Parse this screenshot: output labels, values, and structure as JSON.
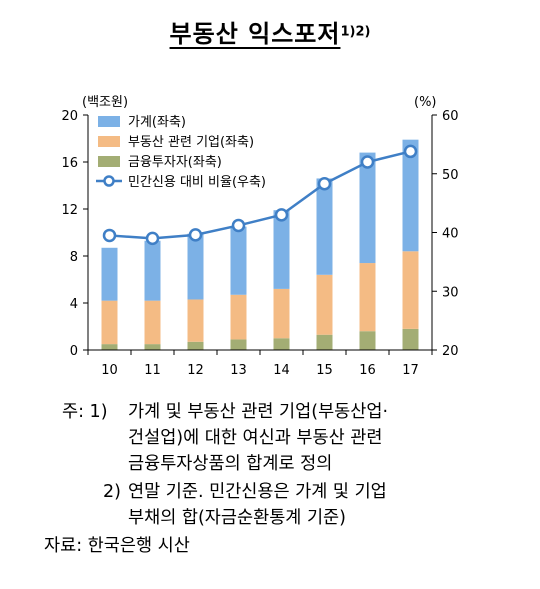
{
  "title": "부동산 익스포저",
  "title_footnote_marks": "1)2)",
  "chart_data": {
    "type": "bar+line",
    "stacked": true,
    "categories": [
      "10",
      "11",
      "12",
      "13",
      "14",
      "15",
      "16",
      "17"
    ],
    "y_left_label": "(백조원)",
    "y_right_label": "(%)",
    "y_left_range": [
      0,
      20
    ],
    "y_left_ticks": [
      "0",
      "4",
      "8",
      "12",
      "16",
      "20"
    ],
    "y_right_range": [
      20,
      60
    ],
    "y_right_ticks": [
      "20",
      "30",
      "40",
      "50",
      "60"
    ],
    "legend_position": "top-left",
    "series": [
      {
        "name": "금융투자자(좌축)",
        "kind": "bar",
        "color": "#a3ad74",
        "values": [
          0.5,
          0.5,
          0.7,
          0.9,
          1.0,
          1.3,
          1.6,
          1.8
        ]
      },
      {
        "name": "부동산 관련 기업(좌축)",
        "kind": "bar",
        "color": "#f4bb84",
        "values": [
          3.7,
          3.7,
          3.6,
          3.8,
          4.2,
          5.1,
          5.8,
          6.6
        ]
      },
      {
        "name": "가계(좌축)",
        "kind": "bar",
        "color": "#7cb1e6",
        "values": [
          4.5,
          5.1,
          5.6,
          5.8,
          6.7,
          8.2,
          9.4,
          9.5
        ]
      },
      {
        "name": "민간신용 대비 비율(우축)",
        "kind": "line",
        "axis": "right",
        "color": "#3f7fc6",
        "values": [
          39.5,
          39.0,
          39.6,
          41.2,
          43.0,
          48.3,
          52.0,
          53.8
        ]
      }
    ],
    "legend_order": [
      2,
      1,
      0,
      3
    ]
  },
  "notes": {
    "note1_prefix": "주: 1)",
    "note1_line1": "가계 및 부동산 관련 기업(부동산업·",
    "note1_line2": "건설업)에 대한 여신과 부동산 관련",
    "note1_line3": "금융투자상품의 합계로 정의",
    "note2_prefix": "2)",
    "note2_line1": "연말 기준. 민간신용은 가계 및 기업",
    "note2_line2": "부채의 합(자금순환통계 기준)",
    "source": "자료: 한국은행 시산"
  }
}
